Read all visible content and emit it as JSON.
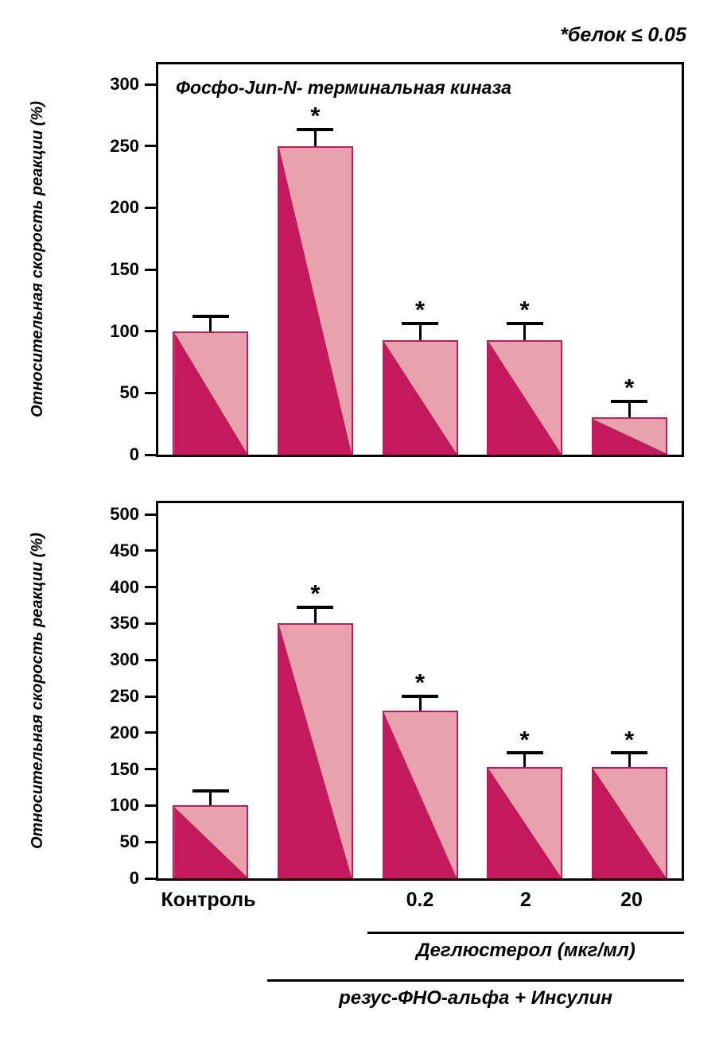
{
  "annotation": {
    "significance_note": "*белок ≤ 0.05"
  },
  "colors": {
    "bar_dark": "#c4195c",
    "bar_light": "#e8a2ac",
    "axis": "#000000",
    "error_bar": "#000000"
  },
  "chart_data": [
    {
      "type": "bar",
      "panel": "top",
      "title": "Фосфо-Jun-N- терминальная киназа",
      "xlabel": "",
      "ylabel": "Относительная скорость реакции (%)",
      "ylim": [
        0,
        300
      ],
      "ytick_step": 50,
      "grid": false,
      "legend": false,
      "categories": [
        "Контроль",
        "",
        "0.2",
        "2",
        "20"
      ],
      "values": [
        100,
        250,
        93,
        93,
        30
      ],
      "errors": [
        11,
        12,
        12,
        12,
        12
      ],
      "significant": [
        false,
        true,
        true,
        true,
        true
      ]
    },
    {
      "type": "bar",
      "panel": "bottom",
      "title": "",
      "xlabel": "",
      "ylabel": "Относительная скорость реакции (%)",
      "ylim": [
        0,
        500
      ],
      "ytick_step": 50,
      "grid": false,
      "legend": false,
      "categories": [
        "Контроль",
        "",
        "0.2",
        "2",
        "20"
      ],
      "values": [
        100,
        350,
        230,
        153,
        153
      ],
      "errors": [
        18,
        20,
        18,
        17,
        17
      ],
      "significant": [
        false,
        true,
        true,
        true,
        true
      ]
    }
  ],
  "x_axis": {
    "control_label": "Контроль",
    "dose_labels": [
      "0.2",
      "2",
      "20"
    ],
    "dose_group_label": "Деглюстерол (мкг/мл)",
    "treatment_group_label": "резус-ФНО-альфа + Инсулин"
  }
}
